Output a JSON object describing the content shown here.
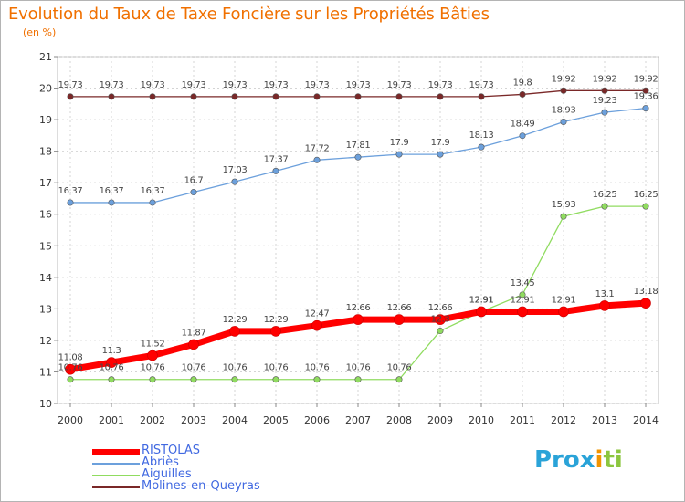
{
  "header": {
    "title": "Evolution du Taux de Taxe Foncière sur les Propriétés Bâties",
    "unit": "(en %)"
  },
  "logo": {
    "text": "Prox",
    "accent": "i",
    "text2": "ti"
  },
  "chart_data": {
    "type": "line",
    "x": [
      2000,
      2001,
      2002,
      2003,
      2004,
      2005,
      2006,
      2007,
      2008,
      2009,
      2010,
      2011,
      2012,
      2013,
      2014
    ],
    "ylim": [
      10,
      21
    ],
    "yticks": [
      10,
      11,
      12,
      13,
      14,
      15,
      16,
      17,
      18,
      19,
      20,
      21
    ],
    "grid": true,
    "legend_position": "bottom-left",
    "series": [
      {
        "name": "RISTOLAS",
        "color": "#ff0000",
        "values": [
          11.08,
          11.3,
          11.52,
          11.87,
          12.29,
          12.29,
          12.47,
          12.66,
          12.66,
          12.66,
          12.91,
          12.91,
          12.91,
          13.1,
          13.18
        ],
        "labels": [
          "11.08",
          "11.3",
          "11.52",
          "11.87",
          "12.29",
          "12.29",
          "12.47",
          "12.66",
          "12.66",
          "12.66",
          "12.91",
          "12.91",
          "12.91",
          "13.1",
          "13.18"
        ]
      },
      {
        "name": "Abriès",
        "color": "#6ca0dc",
        "values": [
          16.37,
          16.37,
          16.37,
          16.7,
          17.03,
          17.37,
          17.72,
          17.81,
          17.9,
          17.9,
          18.13,
          18.49,
          18.93,
          19.23,
          19.36
        ],
        "labels": [
          "16.37",
          "16.37",
          "16.37",
          "16.7",
          "17.03",
          "17.37",
          "17.72",
          "17.81",
          "17.9",
          "17.9",
          "18.13",
          "18.49",
          "18.93",
          "19.23",
          "19.36"
        ]
      },
      {
        "name": "Aiguilles",
        "color": "#90dc60",
        "values": [
          10.76,
          10.76,
          10.76,
          10.76,
          10.76,
          10.76,
          10.76,
          10.76,
          10.76,
          12.3,
          12.91,
          13.45,
          15.93,
          16.25,
          16.25
        ],
        "labels": [
          "10.76",
          "10.76",
          "10.76",
          "10.76",
          "10.76",
          "10.76",
          "10.76",
          "10.76",
          "10.76",
          "12.3",
          "12.91",
          "13.45",
          "15.93",
          "16.25",
          "16.25"
        ]
      },
      {
        "name": "Molines-en-Queyras",
        "color": "#7a2828",
        "values": [
          19.73,
          19.73,
          19.73,
          19.73,
          19.73,
          19.73,
          19.73,
          19.73,
          19.73,
          19.73,
          19.73,
          19.8,
          19.92,
          19.92,
          19.92
        ],
        "labels": [
          "19.73",
          "19.73",
          "19.73",
          "19.73",
          "19.73",
          "19.73",
          "19.73",
          "19.73",
          "19.73",
          "19.73",
          "19.73",
          "19.8",
          "19.92",
          "19.92",
          "19.92"
        ]
      }
    ]
  }
}
